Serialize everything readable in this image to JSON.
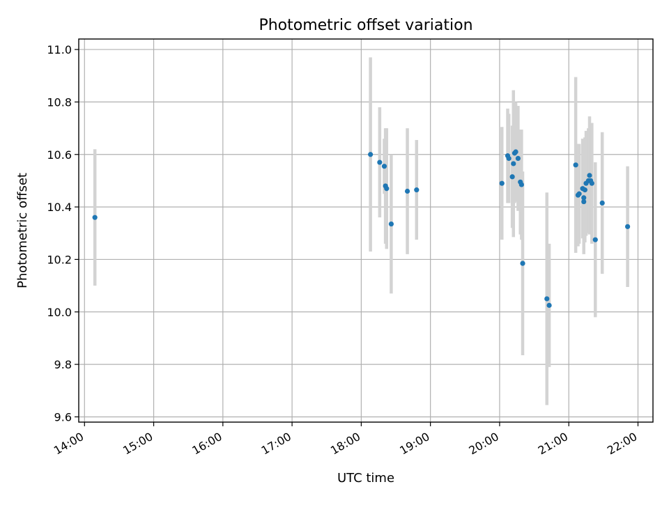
{
  "chart_data": {
    "type": "scatter",
    "title": "Photometric offset variation",
    "xlabel": "UTC time",
    "ylabel": "Photometric offset",
    "grid": true,
    "colors": {
      "point": "#1f77b4",
      "errorbar": "#d3d3d3",
      "grid": "#b0b0b0"
    },
    "x_ticks": [
      "14:00",
      "15:00",
      "16:00",
      "17:00",
      "18:00",
      "19:00",
      "20:00",
      "21:00",
      "22:00"
    ],
    "y_ticks": [
      "9.6",
      "9.8",
      "10.0",
      "10.2",
      "10.4",
      "10.6",
      "10.8",
      "11.0"
    ],
    "xlim": [
      "13:55",
      "22:13"
    ],
    "ylim": [
      9.58,
      11.04
    ],
    "series": [
      {
        "points": [
          {
            "x": "14:09",
            "y": 10.36,
            "err": 0.26
          },
          {
            "x": "18:08",
            "y": 10.6,
            "err": 0.37
          },
          {
            "x": "18:16",
            "y": 10.57,
            "err": 0.21
          },
          {
            "x": "18:20",
            "y": 10.555,
            "err": 0.105
          },
          {
            "x": "18:21",
            "y": 10.48,
            "err": 0.22
          },
          {
            "x": "18:22",
            "y": 10.47,
            "err": 0.23
          },
          {
            "x": "18:26",
            "y": 10.335,
            "err": 0.265
          },
          {
            "x": "18:40",
            "y": 10.46,
            "err": 0.24
          },
          {
            "x": "18:48",
            "y": 10.465,
            "err": 0.19
          },
          {
            "x": "20:02",
            "y": 10.49,
            "err": 0.215
          },
          {
            "x": "20:07",
            "y": 10.595,
            "err": 0.18
          },
          {
            "x": "20:08",
            "y": 10.585,
            "err": 0.17
          },
          {
            "x": "20:11",
            "y": 10.515,
            "err": 0.195
          },
          {
            "x": "20:12",
            "y": 10.565,
            "err": 0.28
          },
          {
            "x": "20:13",
            "y": 10.605,
            "err": 0.19
          },
          {
            "x": "20:14",
            "y": 10.61,
            "err": 0.19
          },
          {
            "x": "20:16",
            "y": 10.585,
            "err": 0.2
          },
          {
            "x": "20:18",
            "y": 10.495,
            "err": 0.2
          },
          {
            "x": "20:19",
            "y": 10.485,
            "err": 0.21
          },
          {
            "x": "20:20",
            "y": 10.185,
            "err": 0.35
          },
          {
            "x": "20:41",
            "y": 10.05,
            "err": 0.405
          },
          {
            "x": "20:43",
            "y": 10.025,
            "err": 0.235
          },
          {
            "x": "21:06",
            "y": 10.56,
            "err": 0.335
          },
          {
            "x": "21:08",
            "y": 10.445,
            "err": 0.195
          },
          {
            "x": "21:09",
            "y": 10.45,
            "err": 0.19
          },
          {
            "x": "21:12",
            "y": 10.47,
            "err": 0.19
          },
          {
            "x": "21:13",
            "y": 10.42,
            "err": 0.2
          },
          {
            "x": "21:13",
            "y": 10.435,
            "err": 0.2
          },
          {
            "x": "21:14",
            "y": 10.465,
            "err": 0.2
          },
          {
            "x": "21:15",
            "y": 10.49,
            "err": 0.2
          },
          {
            "x": "21:17",
            "y": 10.5,
            "err": 0.2
          },
          {
            "x": "21:18",
            "y": 10.52,
            "err": 0.225
          },
          {
            "x": "21:19",
            "y": 10.5,
            "err": 0.2
          },
          {
            "x": "21:20",
            "y": 10.49,
            "err": 0.23
          },
          {
            "x": "21:23",
            "y": 10.275,
            "err": 0.295
          },
          {
            "x": "21:29",
            "y": 10.415,
            "err": 0.27
          },
          {
            "x": "21:51",
            "y": 10.325,
            "err": 0.23
          }
        ]
      }
    ]
  }
}
